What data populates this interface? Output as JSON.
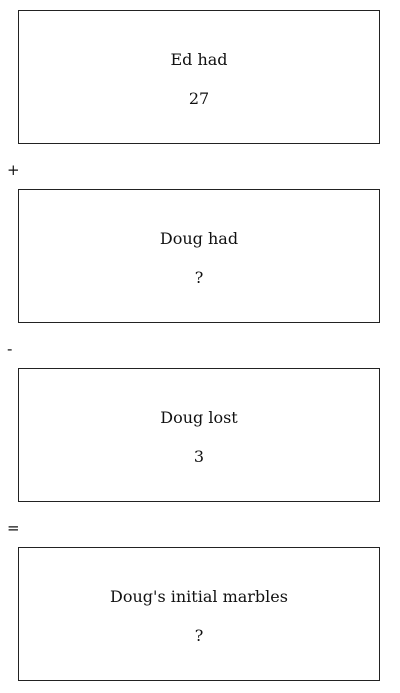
{
  "boxes": [
    {
      "label": "Ed had",
      "value": "27"
    },
    {
      "label": "Doug had",
      "value": "?"
    },
    {
      "label": "Doug lost",
      "value": "3"
    },
    {
      "label": "Doug's initial marbles",
      "value": "?"
    }
  ],
  "operators": [
    "+",
    "-",
    "="
  ]
}
